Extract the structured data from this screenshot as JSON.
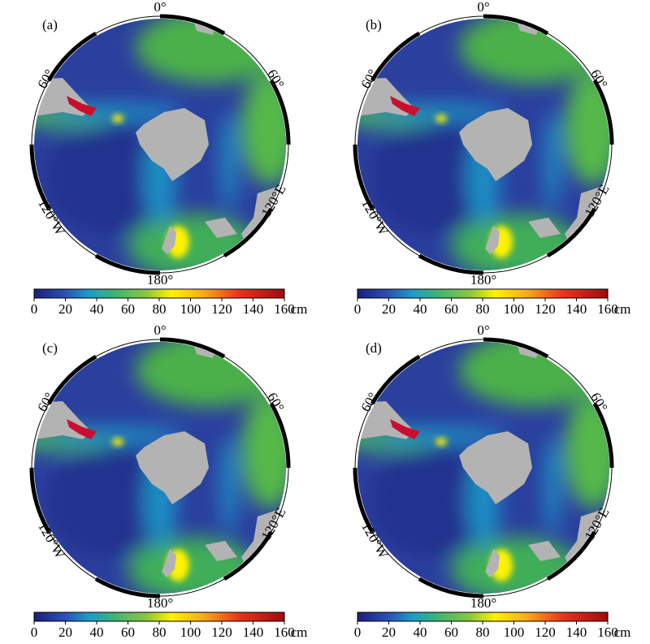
{
  "panels": [
    {
      "label": "(a)",
      "lon_labels": {
        "top": "0°",
        "left": "60°",
        "right": "60°",
        "lower_left": "120°W",
        "lower_right": "120°E",
        "bottom": "180°"
      },
      "colorbar": {
        "ticks": [
          0,
          20,
          40,
          60,
          80,
          100,
          120,
          140,
          160
        ],
        "unit": "cm"
      }
    },
    {
      "label": "(b)",
      "lon_labels": {
        "top": "0°",
        "left": "60°",
        "right": "60°",
        "lower_left": "120°W",
        "lower_right": "120°E",
        "bottom": "180°"
      },
      "colorbar": {
        "ticks": [
          0,
          20,
          40,
          60,
          80,
          100,
          120,
          140,
          160
        ],
        "unit": "cm"
      }
    },
    {
      "label": "(c)",
      "lon_labels": {
        "top": "0°",
        "left": "60°",
        "right": "60°",
        "lower_left": "120°W",
        "lower_right": "120°E",
        "bottom": "180°"
      },
      "colorbar": {
        "ticks": [
          0,
          20,
          40,
          60,
          80,
          100,
          120,
          140,
          160
        ],
        "unit": "cm"
      }
    },
    {
      "label": "(d)",
      "lon_labels": {
        "top": "0°",
        "left": "60°",
        "right": "60°",
        "lower_left": "120°W",
        "lower_right": "120°E",
        "bottom": "180°"
      },
      "colorbar": {
        "ticks": [
          0,
          20,
          40,
          60,
          80,
          100,
          120,
          140,
          160
        ],
        "unit": "cm"
      }
    }
  ]
}
